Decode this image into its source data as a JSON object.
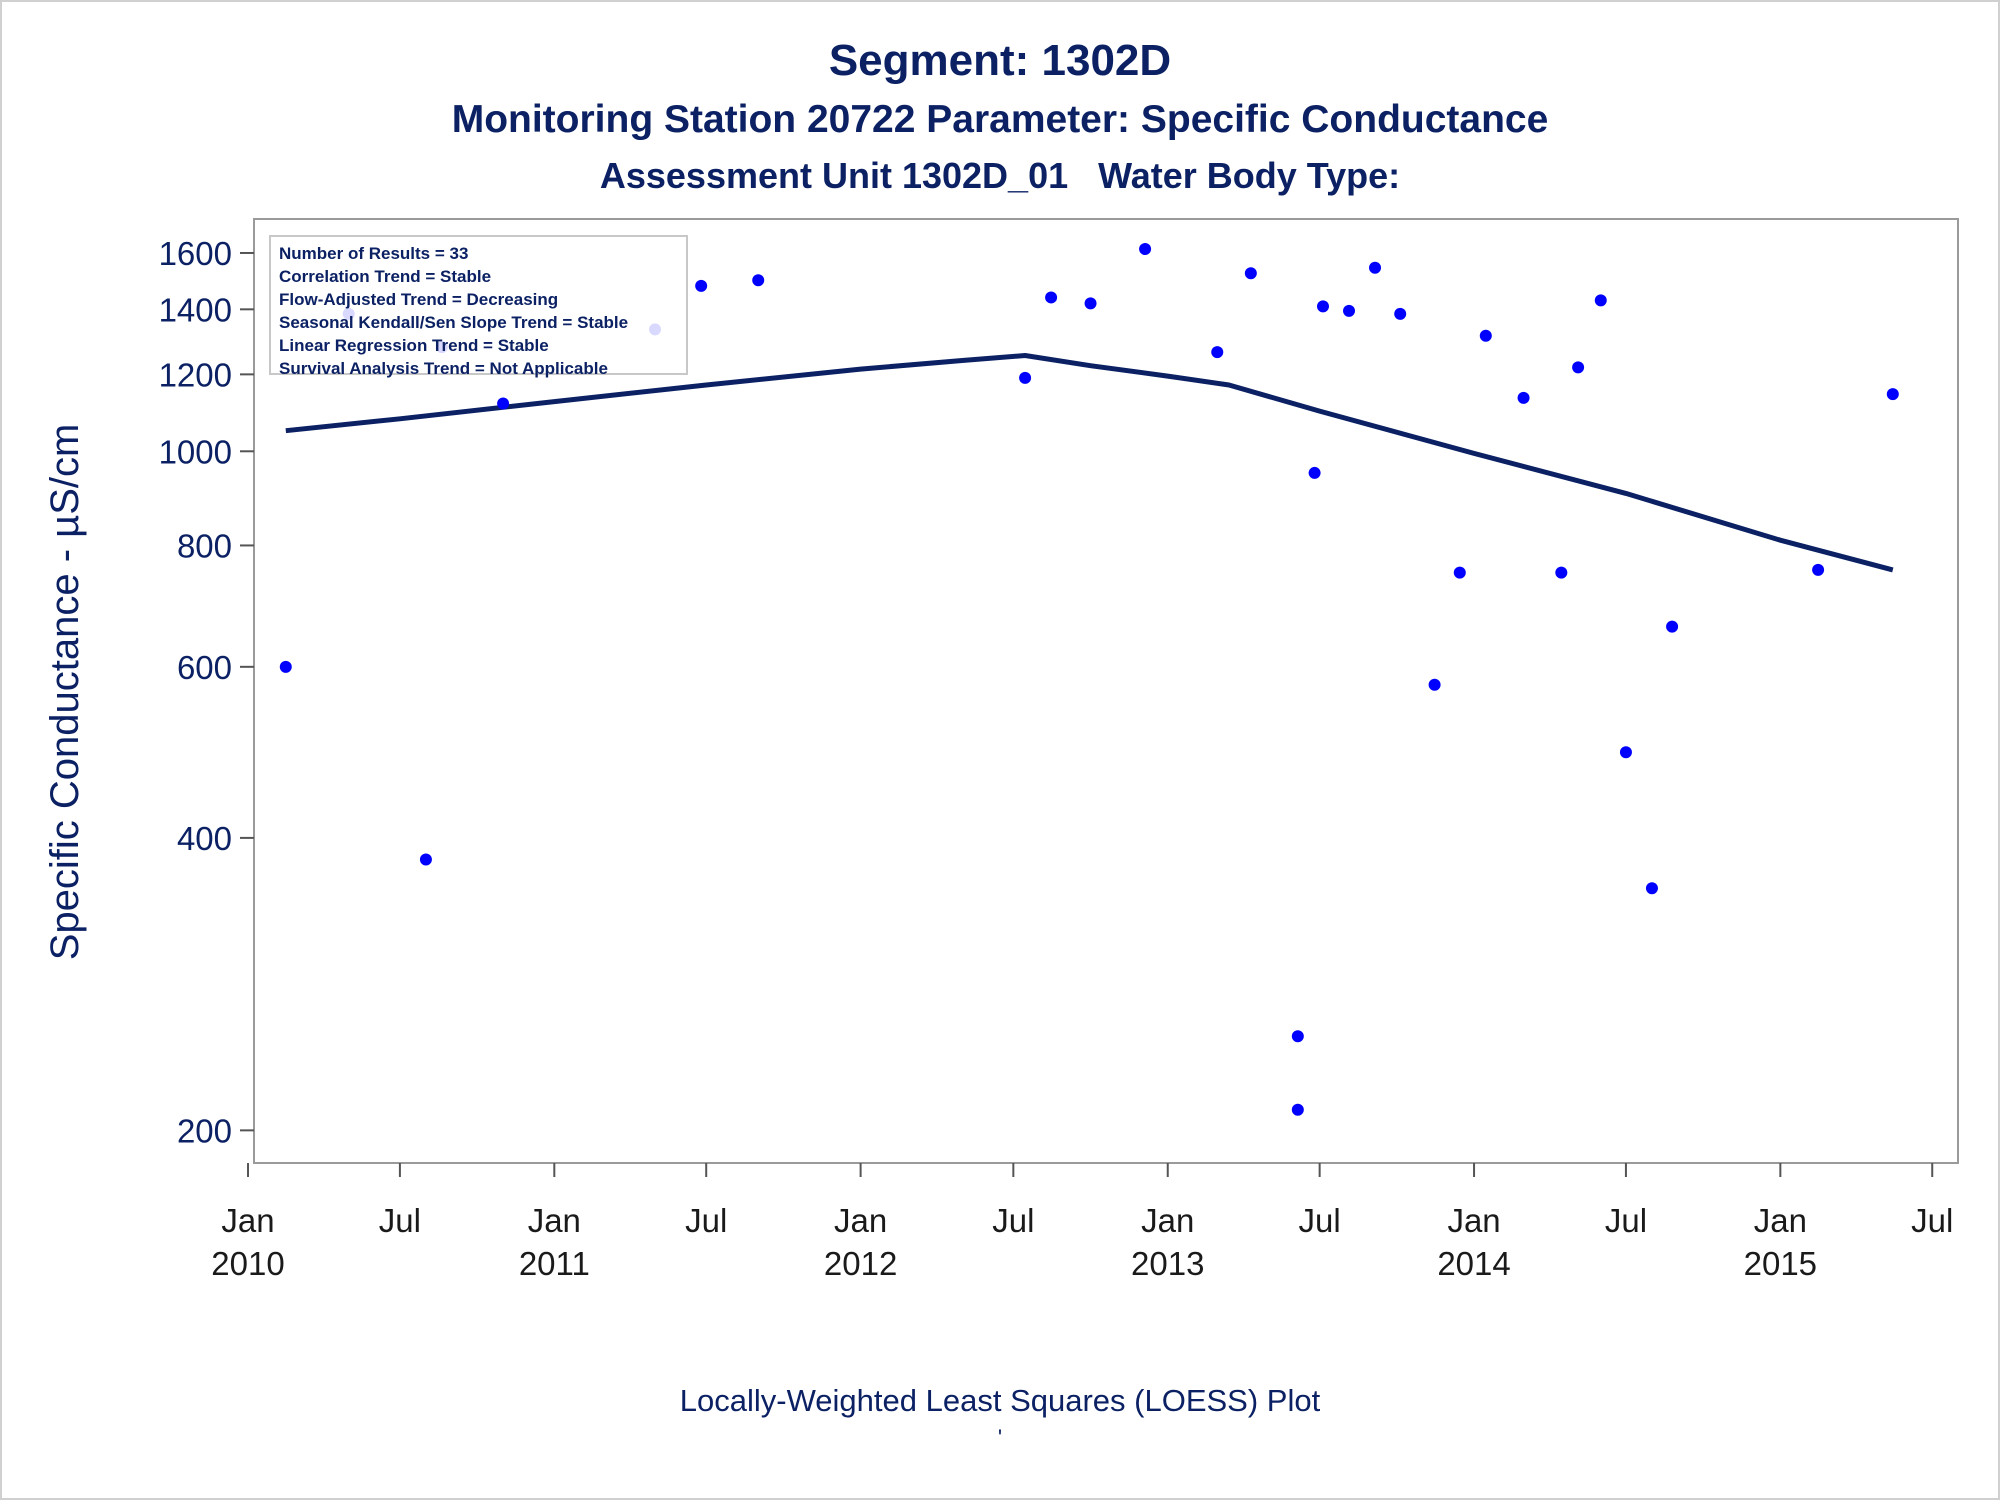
{
  "titles": {
    "line1": "Segment: 1302D",
    "line2": "Monitoring Station 20722 Parameter: Specific Conductance",
    "line3": "Assessment Unit 1302D_01   Water Body Type:"
  },
  "stats_box": [
    "Number of Results = 33",
    "Correlation Trend = Stable",
    "Flow-Adjusted Trend = Decreasing",
    "Seasonal Kendall/Sen Slope Trend = Stable",
    "Linear Regression Trend = Stable",
    "Survival Analysis Trend = Not Applicable"
  ],
  "footnote": {
    "line1": "Locally-Weighted Least Squares (LOESS) Plot",
    "line2": "'"
  },
  "colors": {
    "text": "#0b2164",
    "points": "#0000ff",
    "line": "#0b2164",
    "axes": "#9a9a9a"
  },
  "chart_data": {
    "type": "scatter",
    "ylabel": "Specific Conductance -  µS/cm",
    "xlabel": "",
    "y_scale": "log",
    "ylim": [
      190,
      1650
    ],
    "y_ticks": [
      200,
      400,
      600,
      800,
      1000,
      1200,
      1400,
      1600
    ],
    "xlim": [
      "2010-01-01",
      "2015-07-01"
    ],
    "x_ticks": [
      {
        "date": "2010-01-01",
        "label1": "Jan",
        "label2": "2010"
      },
      {
        "date": "2010-07-01",
        "label1": "Jul",
        "label2": ""
      },
      {
        "date": "2011-01-01",
        "label1": "Jan",
        "label2": "2011"
      },
      {
        "date": "2011-07-01",
        "label1": "Jul",
        "label2": ""
      },
      {
        "date": "2012-01-01",
        "label1": "Jan",
        "label2": "2012"
      },
      {
        "date": "2012-07-01",
        "label1": "Jul",
        "label2": ""
      },
      {
        "date": "2013-01-01",
        "label1": "Jan",
        "label2": "2013"
      },
      {
        "date": "2013-07-01",
        "label1": "Jul",
        "label2": ""
      },
      {
        "date": "2014-01-01",
        "label1": "Jan",
        "label2": "2014"
      },
      {
        "date": "2014-07-01",
        "label1": "Jul",
        "label2": ""
      },
      {
        "date": "2015-01-01",
        "label1": "Jan",
        "label2": "2015"
      },
      {
        "date": "2015-07-01",
        "label1": "Jul",
        "label2": ""
      }
    ],
    "points": [
      {
        "x": "2010-02-15",
        "y": 600
      },
      {
        "x": "2010-05-01",
        "y": 1385
      },
      {
        "x": "2010-08-01",
        "y": 380
      },
      {
        "x": "2010-08-20",
        "y": 1280
      },
      {
        "x": "2010-11-01",
        "y": 1120
      },
      {
        "x": "2011-05-01",
        "y": 1335
      },
      {
        "x": "2011-06-25",
        "y": 1480
      },
      {
        "x": "2011-09-01",
        "y": 1500
      },
      {
        "x": "2012-07-15",
        "y": 1190
      },
      {
        "x": "2012-08-15",
        "y": 1440
      },
      {
        "x": "2012-10-01",
        "y": 1420
      },
      {
        "x": "2012-12-05",
        "y": 1615
      },
      {
        "x": "2013-03-01",
        "y": 1265
      },
      {
        "x": "2013-04-10",
        "y": 1525
      },
      {
        "x": "2013-06-05",
        "y": 250
      },
      {
        "x": "2013-06-05",
        "y": 210
      },
      {
        "x": "2013-06-25",
        "y": 950
      },
      {
        "x": "2013-07-05",
        "y": 1410
      },
      {
        "x": "2013-08-05",
        "y": 1395
      },
      {
        "x": "2013-09-05",
        "y": 1545
      },
      {
        "x": "2013-10-05",
        "y": 1385
      },
      {
        "x": "2013-11-15",
        "y": 575
      },
      {
        "x": "2013-12-15",
        "y": 750
      },
      {
        "x": "2014-01-15",
        "y": 1315
      },
      {
        "x": "2014-03-01",
        "y": 1135
      },
      {
        "x": "2014-04-15",
        "y": 750
      },
      {
        "x": "2014-05-05",
        "y": 1220
      },
      {
        "x": "2014-06-01",
        "y": 1430
      },
      {
        "x": "2014-07-01",
        "y": 490
      },
      {
        "x": "2014-08-01",
        "y": 355
      },
      {
        "x": "2014-08-25",
        "y": 660
      },
      {
        "x": "2015-02-15",
        "y": 755
      },
      {
        "x": "2015-05-15",
        "y": 1145
      }
    ],
    "loess": [
      {
        "x": "2010-02-15",
        "y": 1050
      },
      {
        "x": "2010-07-01",
        "y": 1080
      },
      {
        "x": "2011-01-01",
        "y": 1125
      },
      {
        "x": "2011-07-01",
        "y": 1170
      },
      {
        "x": "2012-01-01",
        "y": 1215
      },
      {
        "x": "2012-05-01",
        "y": 1240
      },
      {
        "x": "2012-07-15",
        "y": 1255
      },
      {
        "x": "2012-10-01",
        "y": 1225
      },
      {
        "x": "2013-01-01",
        "y": 1195
      },
      {
        "x": "2013-03-15",
        "y": 1170
      },
      {
        "x": "2013-07-01",
        "y": 1100
      },
      {
        "x": "2014-01-01",
        "y": 995
      },
      {
        "x": "2014-07-01",
        "y": 905
      },
      {
        "x": "2015-01-01",
        "y": 810
      },
      {
        "x": "2015-05-15",
        "y": 755
      }
    ]
  }
}
